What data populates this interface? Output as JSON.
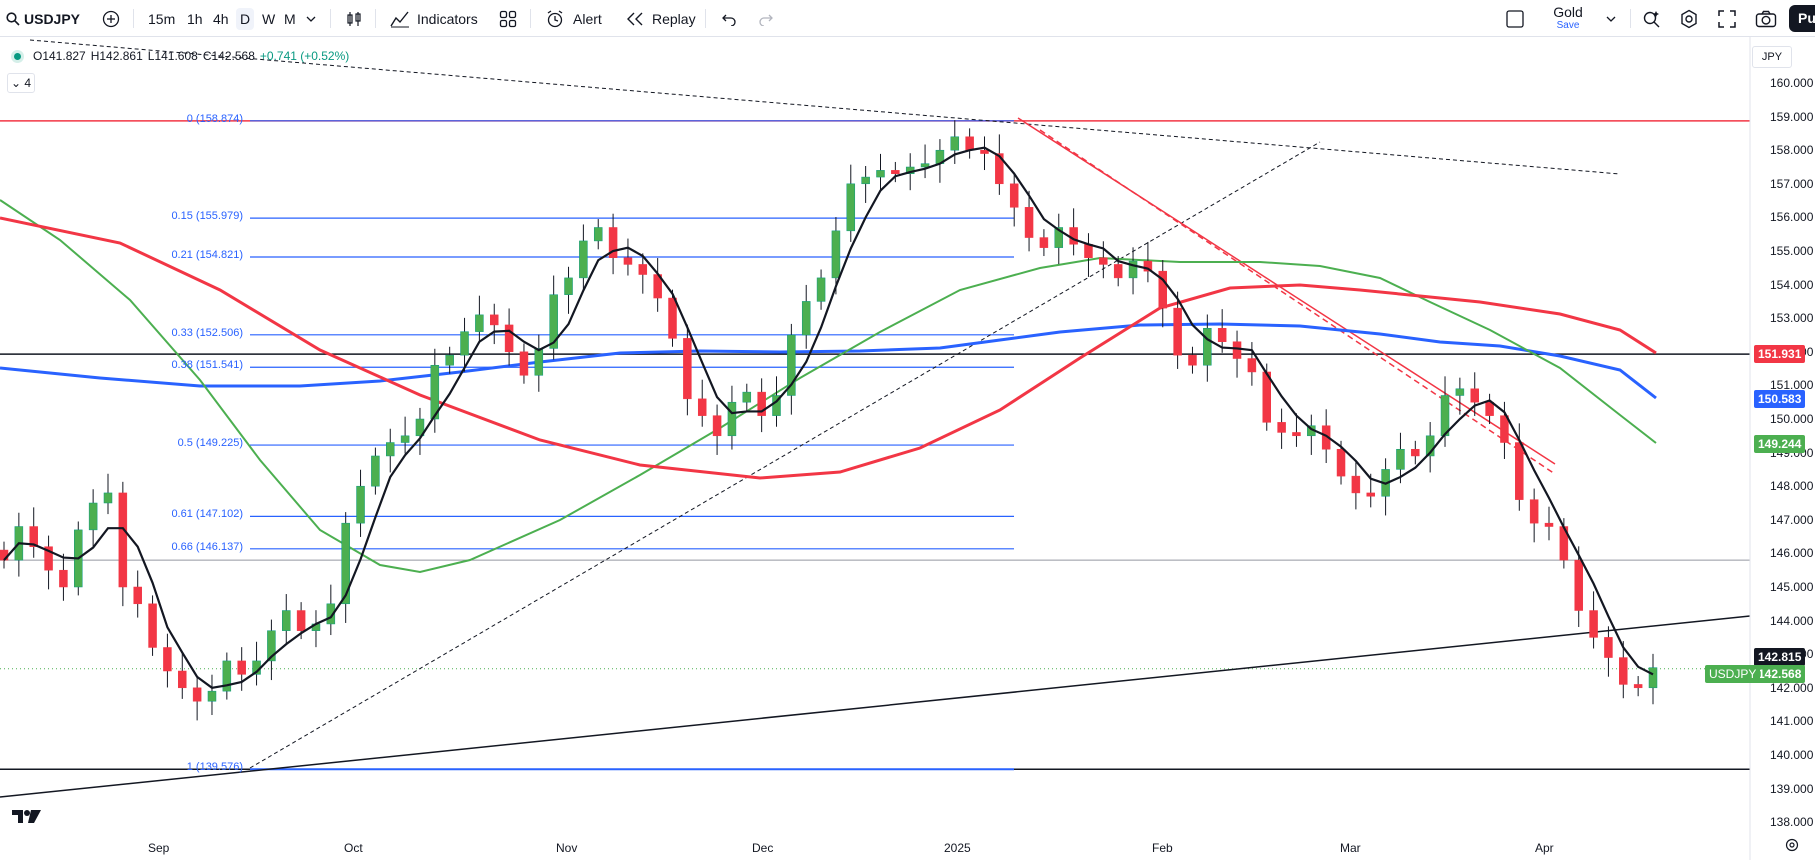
{
  "toolbar": {
    "symbol": "USDJPY",
    "search_icon": "search-icon",
    "add_symbol_icon": "plus-circle-icon",
    "timeframes": [
      "15m",
      "1h",
      "4h",
      "D",
      "W",
      "M"
    ],
    "active_timeframe": "D",
    "chart_type_icon": "candles-icon",
    "indicators_label": "Indicators",
    "layouts_icon": "grid-icon",
    "alert_label": "Alert",
    "replay_label": "Replay",
    "undo_icon": "undo-icon",
    "redo_icon": "redo-icon",
    "layout_name": "Gold",
    "save_label": "Save",
    "publish_label": "Pu"
  },
  "legend": {
    "open": "O141.827",
    "high": "H142.861",
    "low": "L141.608",
    "close": "C142.568",
    "change": "+0.741 (+0.52%)",
    "indicator_count": "4"
  },
  "currency_label": "JPY",
  "fib_levels": [
    {
      "label": "0 (158.874)",
      "price": 158.874
    },
    {
      "label": "0.15 (155.979)",
      "price": 155.979
    },
    {
      "label": "0.21 (154.821)",
      "price": 154.821
    },
    {
      "label": "0.33 (152.506)",
      "price": 152.506
    },
    {
      "label": "0.38 (151.541)",
      "price": 151.541
    },
    {
      "label": "0.5 (149.225)",
      "price": 149.225
    },
    {
      "label": "0.61 (147.102)",
      "price": 147.102
    },
    {
      "label": "0.66 (146.137)",
      "price": 146.137
    },
    {
      "label": "1 (139.576)",
      "price": 139.576
    }
  ],
  "price_tags": [
    {
      "value": "151.931",
      "price": 151.931,
      "color": "#f23645"
    },
    {
      "value": "150.583",
      "price": 150.583,
      "color": "#2962ff"
    },
    {
      "value": "149.244",
      "price": 149.244,
      "color": "#4caf50"
    },
    {
      "value": "142.815",
      "price": 142.815,
      "color": "#131722"
    },
    {
      "value": "142.568",
      "price": 142.568,
      "color": "#4caf50"
    }
  ],
  "symbol_tag": "USDJPY",
  "y_axis_labels": [
    "160.000",
    "159.000",
    "158.000",
    "157.000",
    "156.000",
    "155.000",
    "154.000",
    "153.000",
    "152.000",
    "151.000",
    "150.000",
    "149.000",
    "148.000",
    "147.000",
    "146.000",
    "145.000",
    "144.000",
    "143.000",
    "142.000",
    "141.000",
    "140.000",
    "139.000",
    "138.000"
  ],
  "x_axis_labels": [
    "Sep",
    "Oct",
    "Nov",
    "Dec",
    "2025",
    "Feb",
    "Mar",
    "Apr"
  ],
  "colors": {
    "bull": "#089981",
    "bear": "#f23645",
    "sma_red": "#f23645",
    "sma_green": "#4caf50",
    "sma_blue": "#2962ff"
  },
  "chart_data": {
    "type": "candlestick",
    "symbol": "USDJPY",
    "interval": "D",
    "ylim": [
      137.6,
      160.4
    ],
    "x_labels": [
      "Sep",
      "Oct",
      "Nov",
      "Dec",
      "2025",
      "Feb",
      "Mar",
      "Apr"
    ],
    "close_path": [
      145.8,
      146.8,
      146.2,
      145.5,
      145.0,
      146.7,
      147.5,
      147.8,
      145.0,
      144.5,
      143.2,
      142.5,
      142.0,
      141.6,
      141.9,
      142.8,
      142.4,
      142.8,
      143.7,
      144.3,
      143.7,
      143.9,
      144.5,
      146.9,
      148.0,
      148.9,
      149.3,
      149.5,
      150.0,
      151.6,
      151.9,
      152.6,
      153.1,
      152.8,
      152.0,
      151.3,
      152.1,
      153.7,
      154.2,
      155.3,
      155.7,
      154.8,
      154.6,
      154.3,
      153.6,
      152.4,
      150.6,
      150.1,
      149.5,
      150.5,
      150.8,
      150.1,
      150.7,
      152.5,
      153.5,
      154.2,
      155.6,
      157.0,
      157.2,
      157.4,
      157.3,
      157.5,
      157.6,
      158.0,
      158.4,
      158.0,
      157.9,
      157.0,
      156.3,
      155.4,
      155.1,
      155.7,
      155.2,
      154.8,
      154.6,
      154.2,
      154.7,
      154.4,
      153.3,
      151.9,
      151.6,
      152.7,
      152.3,
      151.8,
      151.4,
      149.9,
      149.6,
      149.5,
      149.8,
      149.1,
      148.3,
      147.8,
      147.7,
      148.5,
      149.1,
      148.9,
      149.5,
      150.7,
      150.9,
      150.5,
      150.1,
      149.3,
      147.6,
      146.9,
      146.8,
      145.8,
      144.3,
      143.5,
      142.9,
      142.1,
      142.0,
      142.6
    ],
    "series": [
      {
        "name": "SMA red",
        "color": "#f23645"
      },
      {
        "name": "SMA green",
        "color": "#4caf50"
      },
      {
        "name": "SMA blue",
        "color": "#2962ff"
      }
    ],
    "horizontal_lines": [
      158.874,
      151.931,
      145.8,
      139.576
    ],
    "last_price": 142.568
  }
}
